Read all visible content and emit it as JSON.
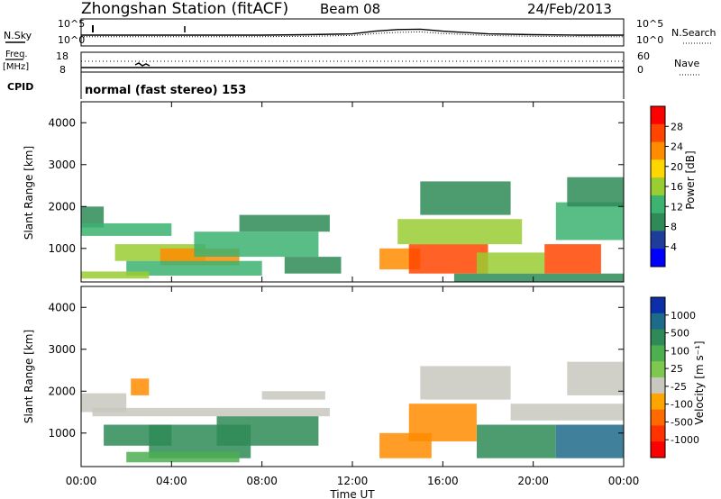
{
  "header": {
    "station": "Zhongshan Station (fitACF)",
    "beam": "Beam 08",
    "date": "24/Feb/2013"
  },
  "noise_panel": {
    "left_label": "N.Sky",
    "right_label": "N.Search",
    "left_ticks": [
      "10^5",
      "10^0"
    ],
    "right_ticks": [
      "10^5",
      "10^0"
    ]
  },
  "freq_panel": {
    "left_label": "Freq.",
    "left_unit": "[MHz]",
    "right_label": "Nave",
    "left_ticks": [
      "18",
      "8"
    ],
    "right_ticks": [
      "60",
      "0"
    ]
  },
  "cpid": {
    "label": "CPID",
    "text": "normal (fast stereo) 153"
  },
  "power_panel": {
    "ylabel": "Slant Range [km]",
    "yticks": [
      "4000",
      "3000",
      "2000",
      "1000"
    ],
    "colorbar_label": "Power [dB]",
    "colorbar_ticks": [
      "28",
      "24",
      "20",
      "16",
      "12",
      "8",
      "4"
    ],
    "colorbar_colors": [
      "#ff0000",
      "#ff4500",
      "#ff8c00",
      "#ffd700",
      "#9acd32",
      "#3cb371",
      "#2e8b57",
      "#1e3c9a",
      "#0000ff"
    ]
  },
  "velocity_panel": {
    "ylabel": "Slant Range [km]",
    "yticks": [
      "4000",
      "3000",
      "2000",
      "1000"
    ],
    "colorbar_label": "Velocity [m s⁻¹]",
    "colorbar_ticks": [
      "1000",
      "500",
      "100",
      "25",
      "-25",
      "-100",
      "-500",
      "-1000"
    ],
    "colorbar_colors": [
      "#0a2fa8",
      "#1e6a8a",
      "#2e8b57",
      "#4caf50",
      "#7ec850",
      "#c8c8c0",
      "#ffa500",
      "#ff6a00",
      "#ff3300",
      "#ff0000"
    ]
  },
  "xaxis": {
    "label": "Time UT",
    "ticks": [
      "00:00",
      "04:00",
      "08:00",
      "12:00",
      "16:00",
      "20:00",
      "00:00"
    ]
  },
  "chart_data": [
    {
      "type": "line",
      "title": "Zhongshan Station (fitACF) Beam 08 24/Feb/2013",
      "xlabel": "Time UT",
      "ylabel": "N.Sky / N.Search",
      "ylim_log10": [
        0,
        5
      ],
      "x_hours": [
        0,
        2,
        4,
        6,
        8,
        10,
        12,
        13,
        14,
        15,
        16,
        18,
        20,
        22,
        24
      ],
      "series": [
        {
          "name": "N.Sky",
          "values_log10": [
            1.6,
            1.6,
            1.6,
            1.6,
            1.6,
            1.7,
            1.9,
            2.6,
            3.0,
            3.1,
            2.6,
            1.9,
            1.7,
            1.6,
            1.6
          ]
        },
        {
          "name": "N.Search",
          "values_log10": [
            1.2,
            1.2,
            1.2,
            1.2,
            1.2,
            1.3,
            1.5,
            2.0,
            2.3,
            2.4,
            2.0,
            1.5,
            1.3,
            1.2,
            1.2
          ]
        }
      ]
    },
    {
      "type": "line",
      "xlabel": "Time UT",
      "ylabel": "Freq. [MHz] / Nave",
      "x_hours": [
        0,
        24
      ],
      "series": [
        {
          "name": "Freq.",
          "values": [
            10,
            10
          ]
        },
        {
          "name": "Nave",
          "values": [
            33,
            33
          ]
        }
      ]
    },
    {
      "type": "heatmap",
      "title": "Power [dB]",
      "xlabel": "Time UT",
      "ylabel": "Slant Range [km]",
      "xlim_hours": [
        0,
        24
      ],
      "ylim": [
        200,
        4500
      ],
      "colorbar_range": [
        0,
        31
      ],
      "regions": [
        {
          "t0": 0.0,
          "t1": 1.0,
          "r0": 1500,
          "r1": 2000,
          "v": 8
        },
        {
          "t0": 0.0,
          "t1": 4.0,
          "r0": 1300,
          "r1": 1600,
          "v": 11
        },
        {
          "t0": 1.5,
          "t1": 5.5,
          "r0": 700,
          "r1": 1100,
          "v": 17
        },
        {
          "t0": 3.5,
          "t1": 7.0,
          "r0": 600,
          "r1": 1000,
          "v": 22
        },
        {
          "t0": 2.0,
          "t1": 8.0,
          "r0": 350,
          "r1": 700,
          "v": 12
        },
        {
          "t0": 0.0,
          "t1": 3.0,
          "r0": 280,
          "r1": 450,
          "v": 15
        },
        {
          "t0": 5.0,
          "t1": 10.5,
          "r0": 800,
          "r1": 1400,
          "v": 12
        },
        {
          "t0": 7.0,
          "t1": 11.0,
          "r0": 1400,
          "r1": 1800,
          "v": 9
        },
        {
          "t0": 9.0,
          "t1": 11.5,
          "r0": 400,
          "r1": 800,
          "v": 8
        },
        {
          "t0": 13.2,
          "t1": 15.0,
          "r0": 500,
          "r1": 1000,
          "v": 22
        },
        {
          "t0": 14.5,
          "t1": 18.0,
          "r0": 400,
          "r1": 1100,
          "v": 27
        },
        {
          "t0": 14.0,
          "t1": 19.5,
          "r0": 1100,
          "r1": 1700,
          "v": 14
        },
        {
          "t0": 15.0,
          "t1": 19.0,
          "r0": 1800,
          "r1": 2600,
          "v": 8
        },
        {
          "t0": 17.5,
          "t1": 20.5,
          "r0": 400,
          "r1": 900,
          "v": 14
        },
        {
          "t0": 20.5,
          "t1": 23.0,
          "r0": 400,
          "r1": 1100,
          "v": 27
        },
        {
          "t0": 21.0,
          "t1": 24.0,
          "r0": 1200,
          "r1": 2100,
          "v": 13
        },
        {
          "t0": 21.5,
          "t1": 24.0,
          "r0": 2000,
          "r1": 2700,
          "v": 7
        },
        {
          "t0": 16.5,
          "t1": 24.0,
          "r0": 200,
          "r1": 400,
          "v": 6
        }
      ]
    },
    {
      "type": "heatmap",
      "title": "Velocity [m s⁻¹]",
      "xlabel": "Time UT",
      "ylabel": "Slant Range [km]",
      "xlim_hours": [
        0,
        24
      ],
      "ylim": [
        200,
        4500
      ],
      "regions": [
        {
          "t0": 0.0,
          "t1": 2.0,
          "r0": 1500,
          "r1": 1950,
          "v": 0
        },
        {
          "t0": 2.2,
          "t1": 3.0,
          "r0": 1900,
          "r1": 2300,
          "v": -200
        },
        {
          "t0": 0.5,
          "t1": 11.0,
          "r0": 1400,
          "r1": 1600,
          "v": 0
        },
        {
          "t0": 1.0,
          "t1": 4.0,
          "r0": 700,
          "r1": 1200,
          "v": 200
        },
        {
          "t0": 3.0,
          "t1": 7.5,
          "r0": 400,
          "r1": 1200,
          "v": 200
        },
        {
          "t0": 6.0,
          "t1": 10.5,
          "r0": 700,
          "r1": 1400,
          "v": 200
        },
        {
          "t0": 2.0,
          "t1": 7.0,
          "r0": 300,
          "r1": 550,
          "v": 50
        },
        {
          "t0": 8.0,
          "t1": 10.8,
          "r0": 1800,
          "r1": 2000,
          "v": 0
        },
        {
          "t0": 13.2,
          "t1": 15.5,
          "r0": 400,
          "r1": 1000,
          "v": -300
        },
        {
          "t0": 14.5,
          "t1": 17.5,
          "r0": 800,
          "r1": 1700,
          "v": -200
        },
        {
          "t0": 15.0,
          "t1": 19.0,
          "r0": 1800,
          "r1": 2600,
          "v": 0
        },
        {
          "t0": 17.5,
          "t1": 21.0,
          "r0": 400,
          "r1": 1200,
          "v": 200
        },
        {
          "t0": 19.0,
          "t1": 24.0,
          "r0": 1300,
          "r1": 1700,
          "v": 0
        },
        {
          "t0": 21.0,
          "t1": 24.0,
          "r0": 400,
          "r1": 1200,
          "v": 300
        },
        {
          "t0": 21.5,
          "t1": 24.0,
          "r0": 1900,
          "r1": 2700,
          "v": 0
        }
      ]
    }
  ]
}
